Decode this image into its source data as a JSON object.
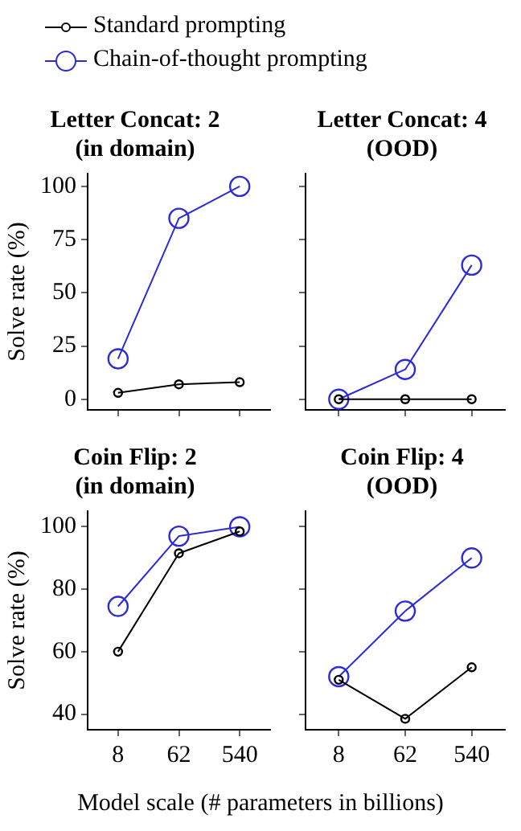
{
  "chart_data": [
    {
      "type": "line",
      "title": "Letter Concat: 2\n(in domain)",
      "ylabel": "Solve rate (%)",
      "categories": [
        "8",
        "62",
        "540"
      ],
      "legend": "top",
      "marker": "circle",
      "tick_labels": "y",
      "ylim": [
        -5,
        106
      ],
      "yticks": [
        0,
        25,
        50,
        75,
        100
      ],
      "grid": false,
      "series": [
        {
          "name": "Standard prompting",
          "color": "#000000",
          "values": [
            3,
            7,
            8
          ]
        },
        {
          "name": "Chain-of-thought prompting",
          "color": "#2b2bd9",
          "values": [
            19,
            85,
            100
          ]
        }
      ]
    },
    {
      "type": "line",
      "title": "Letter Concat: 4\n(OOD)",
      "categories": [
        "8",
        "62",
        "540"
      ],
      "marker": "circle",
      "tick_labels": false,
      "ylim": [
        -5,
        106
      ],
      "yticks": [
        0,
        25,
        50,
        75,
        100
      ],
      "grid": false,
      "series": [
        {
          "color": "#000000",
          "values": [
            0,
            0,
            0
          ]
        },
        {
          "color": "#2b2bd9",
          "values": [
            0,
            14,
            63
          ]
        }
      ]
    },
    {
      "type": "line",
      "title": "Coin Flip: 2\n(in domain)",
      "ylabel": "Solve rate (%)",
      "xlabel": "Model scale (# parameters in billions)",
      "categories": [
        "8",
        "62",
        "540"
      ],
      "marker": "circle",
      "ylim": [
        35,
        105
      ],
      "yticks": [
        40,
        60,
        80,
        100
      ],
      "grid": false,
      "series": [
        {
          "color": "#000000",
          "values": [
            60,
            91.5,
            98.5
          ]
        },
        {
          "color": "#2b2bd9",
          "values": [
            74.5,
            97,
            100
          ]
        }
      ]
    },
    {
      "type": "line",
      "title": "Coin Flip: 4\n(OOD)",
      "categories": [
        "8",
        "62",
        "540"
      ],
      "marker": "circle",
      "tick_labels": "x",
      "ylim": [
        35,
        105
      ],
      "yticks": [
        40,
        60,
        80,
        100
      ],
      "grid": false,
      "series": [
        {
          "color": "#000000",
          "values": [
            51,
            38.5,
            55
          ]
        },
        {
          "color": "#2b2bd9",
          "values": [
            52,
            73,
            90
          ]
        }
      ]
    }
  ]
}
